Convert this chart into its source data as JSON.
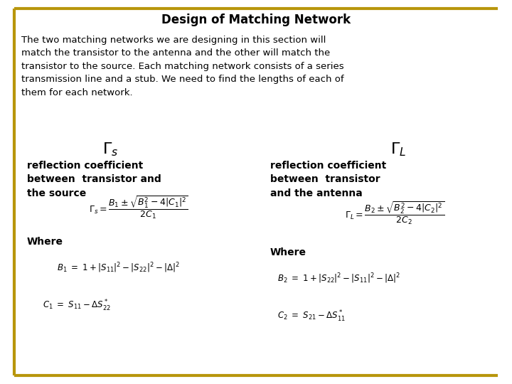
{
  "title": "Design of Matching Network",
  "body_text": "The two matching networks we are designing in this section will\nmatch the transistor to the antenna and the other will match the\ntransistor to the source. Each matching network consists of a series\ntransmission line and a stub. We need to find the lengths of each of\nthem for each network.",
  "left_symbol": "$\\Gamma_s$",
  "right_symbol": "$\\Gamma_L$",
  "left_label": "reflection coefficient\nbetween  transistor and\nthe source",
  "right_label": "reflection coefficient\nbetween  transistor\nand the antenna",
  "left_formula": "$\\Gamma_s = \\dfrac{B_1 \\pm \\sqrt{B_1^2 - 4|C_1|^2}}{2C_1}$",
  "right_formula": "$\\Gamma_L = \\dfrac{B_2 \\pm \\sqrt{B_2^2 - 4|C_2|^2}}{2C_2}$",
  "where_left": "Where",
  "where_right": "Where",
  "left_b": "$B_1 \\ = \\ 1 + |S_{11}|^2 - |S_{22}|^2 - |\\Delta|^2$",
  "left_c": "$C_1 \\ = \\ S_{11} - \\Delta S_{22}^*$",
  "right_b": "$B_2 \\ = \\ 1 + |S_{22}|^2 - |S_{11}|^2 - |\\Delta|^2$",
  "right_c": "$C_2 \\ = \\ S_{21} - \\Delta S_{11}^*$",
  "bg_color": "#ffffff",
  "border_color": "#b8960c",
  "title_fontsize": 12,
  "body_fontsize": 9.5,
  "label_fontsize": 10,
  "formula_fontsize": 9,
  "where_fontsize": 10,
  "small_fontsize": 8.5,
  "symbol_fontsize": 16
}
